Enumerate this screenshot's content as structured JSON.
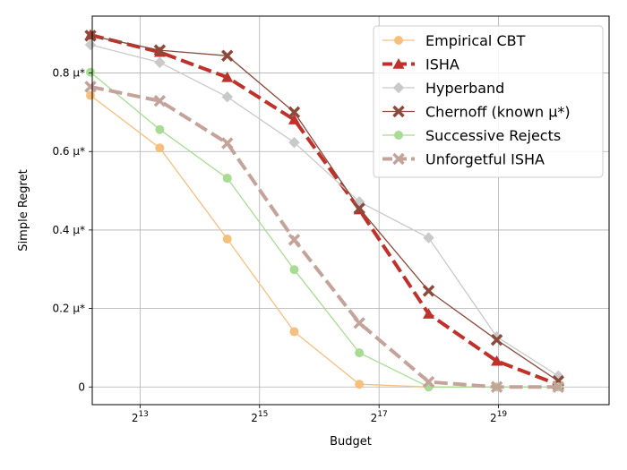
{
  "chart_data": {
    "type": "line",
    "xlabel": "Budget",
    "ylabel": "Simple Regret",
    "x_scale": "log2",
    "xlim": [
      12.2,
      20.85
    ],
    "ylim": [
      -0.045,
      0.945
    ],
    "x_ticks": [
      {
        "value": 13,
        "base": "2",
        "exp": "13"
      },
      {
        "value": 15,
        "base": "2",
        "exp": "15"
      },
      {
        "value": 17,
        "base": "2",
        "exp": "17"
      },
      {
        "value": 19,
        "base": "2",
        "exp": "19"
      }
    ],
    "y_ticks": [
      {
        "value": 0,
        "label": "0"
      },
      {
        "value": 0.2,
        "label": "0.2 μ*"
      },
      {
        "value": 0.4,
        "label": "0.4 μ*"
      },
      {
        "value": 0.6,
        "label": "0.6 μ*"
      },
      {
        "value": 0.8,
        "label": "0.8 μ*"
      }
    ],
    "grid": true,
    "legend_position": "top-right",
    "x": [
      12.17,
      13.33,
      14.46,
      15.58,
      16.67,
      17.83,
      18.97,
      20.0
    ],
    "series": [
      {
        "name": "Empirical CBT",
        "color": "#f5c07e",
        "marker": "circle",
        "dashed": false,
        "width": 1.3,
        "values": [
          0.743,
          0.609,
          0.377,
          0.141,
          0.007,
          0.0,
          0.0,
          0.0
        ]
      },
      {
        "name": "ISHA",
        "color": "#c0312b",
        "marker": "triangle",
        "dashed": true,
        "width": 4,
        "values": [
          0.897,
          0.853,
          0.789,
          0.681,
          0.452,
          0.186,
          0.066,
          0.006
        ]
      },
      {
        "name": "Hyperband",
        "color": "#c9c9c9",
        "marker": "diamond",
        "dashed": false,
        "width": 1.3,
        "values": [
          0.872,
          0.827,
          0.739,
          0.623,
          0.472,
          0.38,
          0.128,
          0.028
        ]
      },
      {
        "name": "Chernoff (known μ*)",
        "color": "#8b4a3c",
        "marker": "x",
        "dashed": false,
        "width": 1.3,
        "values": [
          0.895,
          0.858,
          0.844,
          0.7,
          0.455,
          0.245,
          0.12,
          0.015
        ]
      },
      {
        "name": "Successive Rejects",
        "color": "#a8dc93",
        "marker": "circle",
        "dashed": false,
        "width": 1.3,
        "values": [
          0.802,
          0.656,
          0.532,
          0.299,
          0.087,
          0.0,
          0.0,
          0.0
        ]
      },
      {
        "name": "Unforgetful ISHA",
        "color": "#c4a39b",
        "marker": "x",
        "dashed": true,
        "width": 4,
        "values": [
          0.765,
          0.729,
          0.621,
          0.375,
          0.163,
          0.013,
          0.0,
          0.0
        ]
      }
    ]
  }
}
